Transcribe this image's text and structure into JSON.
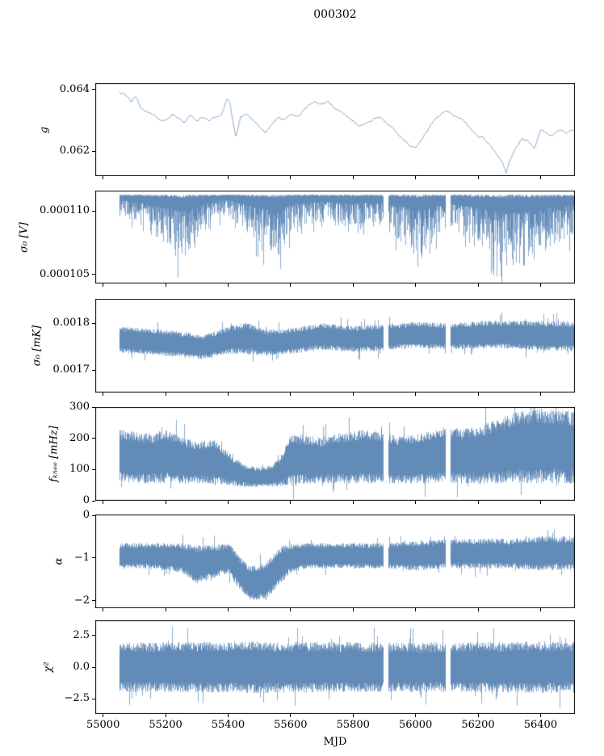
{
  "chart_data": {
    "type": "line",
    "title": "000302",
    "xlabel": "MJD",
    "color": "#4a79ad",
    "xlim": [
      54975,
      56510
    ],
    "x_ticks": [
      {
        "v": 55000,
        "label": "55000"
      },
      {
        "v": 55200,
        "label": "55200"
      },
      {
        "v": 55400,
        "label": "55400"
      },
      {
        "v": 55600,
        "label": "55600"
      },
      {
        "v": 55800,
        "label": "55800"
      },
      {
        "v": 56000,
        "label": "56000"
      },
      {
        "v": 56200,
        "label": "56200"
      },
      {
        "v": 56400,
        "label": "56400"
      }
    ],
    "gaps": [
      [
        55895,
        55913
      ],
      [
        56096,
        56112
      ]
    ],
    "panels": [
      {
        "ylabel": "g",
        "style": "line",
        "ylim": [
          0.0612,
          0.0642
        ],
        "yticks": [
          {
            "v": 0.064,
            "label": "0.064"
          },
          {
            "v": 0.062,
            "label": "0.062"
          }
        ],
        "line": {
          "noise": 5e-05,
          "x": [
            55050,
            55070,
            55090,
            55105,
            55120,
            55140,
            55160,
            55180,
            55200,
            55220,
            55240,
            55260,
            55280,
            55300,
            55320,
            55340,
            55360,
            55380,
            55395,
            55405,
            55415,
            55425,
            55440,
            55460,
            55480,
            55500,
            55520,
            55540,
            55560,
            55580,
            55600,
            55620,
            55640,
            55660,
            55680,
            55700,
            55720,
            55740,
            55760,
            55780,
            55800,
            55820,
            55840,
            55860,
            55880,
            55900,
            55920,
            55940,
            55960,
            55980,
            56000,
            56020,
            56040,
            56060,
            56080,
            56100,
            56120,
            56140,
            56160,
            56180,
            56200,
            56220,
            56240,
            56260,
            56280,
            56290,
            56300,
            56320,
            56340,
            56360,
            56380,
            56400,
            56420,
            56440,
            56460,
            56480,
            56505
          ],
          "y": [
            0.0639,
            0.06385,
            0.0636,
            0.0638,
            0.0634,
            0.0633,
            0.0632,
            0.063,
            0.063,
            0.0632,
            0.0631,
            0.0629,
            0.0632,
            0.063,
            0.0631,
            0.063,
            0.0631,
            0.0632,
            0.0637,
            0.0636,
            0.063,
            0.0625,
            0.0631,
            0.0632,
            0.063,
            0.0628,
            0.0626,
            0.0629,
            0.0631,
            0.063,
            0.0632,
            0.0631,
            0.0633,
            0.0635,
            0.0636,
            0.0635,
            0.0636,
            0.0634,
            0.0633,
            0.0631,
            0.063,
            0.0628,
            0.0629,
            0.063,
            0.0631,
            0.063,
            0.0628,
            0.0626,
            0.0624,
            0.0622,
            0.0621,
            0.0624,
            0.0627,
            0.063,
            0.0632,
            0.0633,
            0.0632,
            0.0631,
            0.0629,
            0.0627,
            0.0625,
            0.0624,
            0.0622,
            0.0619,
            0.0616,
            0.0613,
            0.0617,
            0.0621,
            0.0624,
            0.0623,
            0.0621,
            0.0627,
            0.0626,
            0.0625,
            0.0627,
            0.0626,
            0.0627
          ]
        }
      },
      {
        "ylabel": "σ₀ [V]",
        "style": "hang",
        "ylim": [
          0.0001043,
          0.0001116
        ],
        "yticks": [
          {
            "v": 0.00011,
            "label": "0.000110"
          },
          {
            "v": 0.000105,
            "label": "0.000105"
          }
        ],
        "env": {
          "x": [
            55050,
            55100,
            55150,
            55200,
            55250,
            55280,
            55320,
            55360,
            55400,
            55440,
            55480,
            55520,
            55560,
            55600,
            55650,
            55700,
            55750,
            55800,
            55850,
            55900,
            55950,
            56000,
            56050,
            56100,
            56150,
            56200,
            56250,
            56300,
            56350,
            56400,
            56450,
            56505
          ],
          "top": [
            0.0001113,
            0.0001113,
            0.0001113,
            0.0001113,
            0.0001113,
            0.0001113,
            0.0001113,
            0.0001113,
            0.0001113,
            0.0001113,
            0.0001113,
            0.0001113,
            0.0001113,
            0.0001113,
            0.0001113,
            0.0001113,
            0.0001113,
            0.0001113,
            0.0001113,
            0.0001113,
            0.0001113,
            0.0001113,
            0.0001113,
            0.0001113,
            0.0001113,
            0.0001113,
            0.0001113,
            0.0001113,
            0.0001113,
            0.0001113,
            0.0001113,
            0.0001113
          ],
          "bot": [
            0.0001096,
            0.0001091,
            0.0001083,
            0.000107,
            0.000106,
            0.0001068,
            0.0001082,
            0.0001092,
            0.0001096,
            0.0001086,
            0.0001074,
            0.0001066,
            0.0001064,
            0.0001082,
            0.0001089,
            0.000109,
            0.0001088,
            0.0001085,
            0.0001088,
            0.0001086,
            0.0001076,
            0.0001062,
            0.0001074,
            0.0001084,
            0.0001079,
            0.000107,
            0.0001062,
            0.0001054,
            0.0001059,
            0.0001067,
            0.0001074,
            0.0001079
          ]
        }
      },
      {
        "ylabel": "σ₀ [mK]",
        "style": "band",
        "ylim": [
          0.001652,
          0.001852
        ],
        "yticks": [
          {
            "v": 0.0018,
            "label": "0.0018"
          },
          {
            "v": 0.0017,
            "label": "0.0017"
          }
        ],
        "env": {
          "x": [
            55050,
            55150,
            55250,
            55320,
            55400,
            55460,
            55520,
            55600,
            55700,
            55800,
            55900,
            56000,
            56100,
            56200,
            56300,
            56400,
            56505
          ],
          "top": [
            0.001793,
            0.001788,
            0.001783,
            0.001774,
            0.001794,
            0.001802,
            0.001786,
            0.00179,
            0.0018,
            0.001794,
            0.001798,
            0.001803,
            0.0018,
            0.001805,
            0.001806,
            0.001805,
            0.001804
          ],
          "bot": [
            0.001737,
            0.001732,
            0.001727,
            0.001722,
            0.001734,
            0.001734,
            0.00173,
            0.001734,
            0.001744,
            0.001738,
            0.001742,
            0.001747,
            0.001744,
            0.001745,
            0.001746,
            0.001741,
            0.00174
          ]
        }
      },
      {
        "ylabel": "fₖₙₑₑ [mHz]",
        "style": "band",
        "ylim": [
          0,
          300
        ],
        "yticks": [
          {
            "v": 300,
            "label": "300"
          },
          {
            "v": 200,
            "label": "200"
          },
          {
            "v": 100,
            "label": "100"
          },
          {
            "v": 0,
            "label": "0"
          }
        ],
        "env": {
          "x": [
            55050,
            55100,
            55150,
            55200,
            55250,
            55300,
            55350,
            55400,
            55430,
            55460,
            55500,
            55540,
            55570,
            55600,
            55650,
            55700,
            55750,
            55800,
            55850,
            55900,
            55950,
            56000,
            56050,
            56100,
            56150,
            56200,
            56250,
            56300,
            56350,
            56400,
            56450,
            56505
          ],
          "top": [
            230,
            222,
            215,
            228,
            205,
            188,
            200,
            155,
            128,
            112,
            108,
            115,
            150,
            215,
            210,
            202,
            215,
            225,
            230,
            220,
            205,
            212,
            228,
            238,
            230,
            240,
            258,
            278,
            290,
            296,
            290,
            286
          ],
          "bot": [
            58,
            56,
            55,
            56,
            55,
            54,
            54,
            50,
            46,
            44,
            44,
            45,
            46,
            52,
            55,
            55,
            55,
            56,
            55,
            55,
            54,
            55,
            55,
            56,
            55,
            55,
            55,
            55,
            56,
            56,
            55,
            55
          ]
        }
      },
      {
        "ylabel": "α",
        "style": "band",
        "ylim": [
          -2.18,
          0.02
        ],
        "yticks": [
          {
            "v": 0,
            "label": "0"
          },
          {
            "v": -1,
            "label": "−1"
          },
          {
            "v": -2,
            "label": "−2"
          }
        ],
        "env": {
          "x": [
            55050,
            55150,
            55250,
            55300,
            55350,
            55400,
            55430,
            55470,
            55520,
            55560,
            55600,
            55650,
            55700,
            55800,
            55900,
            56000,
            56100,
            56200,
            56300,
            56400,
            56505
          ],
          "top": [
            -0.65,
            -0.65,
            -0.65,
            -0.7,
            -0.7,
            -0.65,
            -0.9,
            -1.2,
            -1.1,
            -0.75,
            -0.65,
            -0.65,
            -0.65,
            -0.65,
            -0.65,
            -0.6,
            -0.55,
            -0.55,
            -0.55,
            -0.5,
            -0.48
          ],
          "bot": [
            -1.25,
            -1.25,
            -1.35,
            -1.6,
            -1.5,
            -1.35,
            -1.7,
            -2.0,
            -2.0,
            -1.65,
            -1.35,
            -1.25,
            -1.25,
            -1.25,
            -1.25,
            -1.3,
            -1.25,
            -1.25,
            -1.25,
            -1.3,
            -1.28
          ]
        }
      },
      {
        "ylabel": "χ²",
        "style": "band",
        "ylim": [
          -3.7,
          3.7
        ],
        "yticks": [
          {
            "v": 2.5,
            "label": "2.5"
          },
          {
            "v": 0,
            "label": "0.0"
          },
          {
            "v": -2.5,
            "label": "−2.5"
          }
        ],
        "env": {
          "x": [
            55050,
            55500,
            55900,
            56000,
            56505
          ],
          "top": [
            1.95,
            2.05,
            1.95,
            1.95,
            2.05
          ],
          "bot": [
            -1.95,
            -2.05,
            -1.95,
            -1.95,
            -2.05
          ]
        }
      }
    ]
  }
}
